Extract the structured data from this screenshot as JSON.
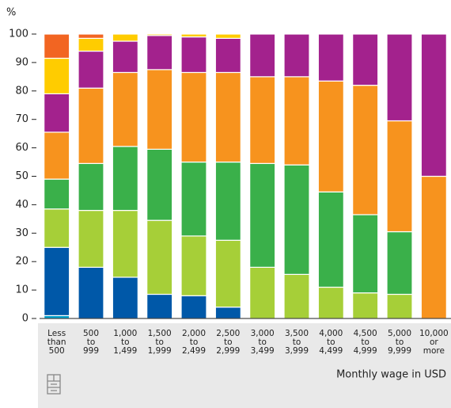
{
  "chart_data": {
    "type": "stacked_bar",
    "y_unit_label": "%",
    "x_axis_label": "Monthly wage in USD",
    "categories": [
      [
        "Less",
        "than",
        "500"
      ],
      [
        "500",
        "to",
        "999"
      ],
      [
        "1,000",
        "to",
        "1,499"
      ],
      [
        "1,500",
        "to",
        "1,999"
      ],
      [
        "2,000",
        "to",
        "2,499"
      ],
      [
        "2,500",
        "to",
        "2,999"
      ],
      [
        "3,000",
        "to",
        "3,499"
      ],
      [
        "3,500",
        "to",
        "3,999"
      ],
      [
        "4,000",
        "to",
        "4,499"
      ],
      [
        "4,500",
        "to",
        "4,999"
      ],
      [
        "5,000",
        "to",
        "9,999"
      ],
      [
        "10,000",
        "or",
        "more"
      ]
    ],
    "series": [
      {
        "color": "#00a1cd",
        "values": [
          1,
          0,
          0,
          0,
          0,
          0,
          0,
          0,
          0,
          0,
          0,
          0
        ]
      },
      {
        "color": "#0058a8",
        "values": [
          24,
          18,
          14.5,
          8.5,
          8,
          4,
          0,
          0,
          0,
          0,
          0,
          0
        ]
      },
      {
        "color": "#a6cf38",
        "values": [
          13.5,
          20,
          23.5,
          26,
          21,
          23.5,
          18,
          15.5,
          11,
          9,
          8.5,
          0
        ]
      },
      {
        "color": "#3ab04a",
        "values": [
          10.5,
          16.5,
          22.5,
          25,
          26,
          27.5,
          36.5,
          38.5,
          33.5,
          27.5,
          22,
          0
        ]
      },
      {
        "color": "#f7931e",
        "values": [
          16.5,
          26.5,
          26,
          28,
          31.5,
          31.5,
          30.5,
          31,
          39,
          45.5,
          39,
          50
        ]
      },
      {
        "color": "#a3228d",
        "values": [
          13.5,
          13,
          11,
          12,
          12.5,
          12,
          15,
          15,
          16.5,
          18,
          30.5,
          50
        ]
      },
      {
        "color": "#ffcc00",
        "values": [
          12.5,
          4.5,
          2.5,
          0.5,
          1,
          1.5,
          0,
          0,
          0,
          0,
          0,
          0
        ]
      },
      {
        "color": "#f26522",
        "values": [
          8.5,
          1.5,
          0,
          0,
          0,
          0,
          0,
          0,
          0,
          0,
          0,
          0
        ]
      }
    ],
    "ylim": [
      0,
      100
    ],
    "yticks": [
      0,
      10,
      20,
      30,
      40,
      50,
      60,
      70,
      80,
      90,
      100
    ]
  }
}
